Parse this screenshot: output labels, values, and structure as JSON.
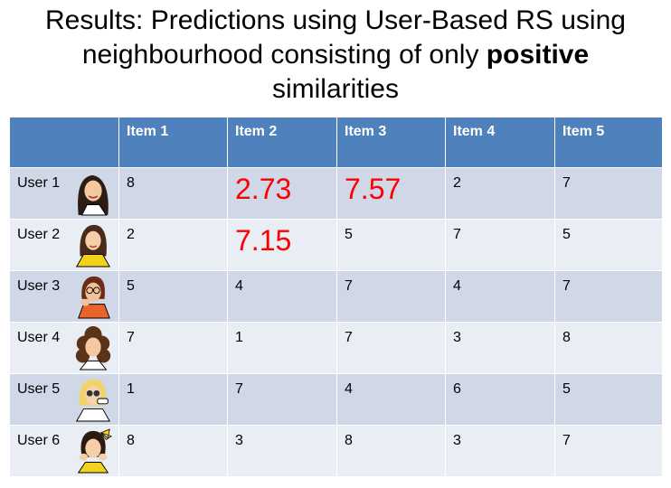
{
  "title": {
    "line1": "Results: Predictions using User-Based RS using",
    "line2a": "neighbourhood consisting of only ",
    "line2b": "positive",
    "line3": "similarities"
  },
  "headers": [
    "",
    "Item 1",
    "Item 2",
    "Item 3",
    "Item 4",
    "Item 5"
  ],
  "rows": [
    {
      "user": "User 1",
      "cells": [
        "8",
        "2.73",
        "7.57",
        "2",
        "7"
      ],
      "predicted": [
        false,
        true,
        true,
        false,
        false
      ],
      "avatar": "woman-face-icon"
    },
    {
      "user": "User 2",
      "cells": [
        "2",
        "7.15",
        "5",
        "7",
        "5"
      ],
      "predicted": [
        false,
        true,
        false,
        false,
        false
      ],
      "avatar": "woman-yellow-shirt-icon"
    },
    {
      "user": "User 3",
      "cells": [
        "5",
        "4",
        "7",
        "4",
        "7"
      ],
      "predicted": [
        false,
        false,
        false,
        false,
        false
      ],
      "avatar": "woman-glasses-icon"
    },
    {
      "user": "User 4",
      "cells": [
        "7",
        "1",
        "7",
        "3",
        "8"
      ],
      "predicted": [
        false,
        false,
        false,
        false,
        false
      ],
      "avatar": "woman-curly-hair-icon"
    },
    {
      "user": "User 5",
      "cells": [
        "1",
        "7",
        "4",
        "6",
        "5"
      ],
      "predicted": [
        false,
        false,
        false,
        false,
        false
      ],
      "avatar": "woman-phone-icon"
    },
    {
      "user": "User 6",
      "cells": [
        "8",
        "3",
        "8",
        "3",
        "7"
      ],
      "predicted": [
        false,
        false,
        false,
        false,
        false
      ],
      "avatar": "woman-bow-icon"
    }
  ],
  "colors": {
    "header": "#4f81bd",
    "row_odd": "#d0d8e8",
    "row_even": "#e9edf4",
    "prediction": "#ff0000"
  }
}
